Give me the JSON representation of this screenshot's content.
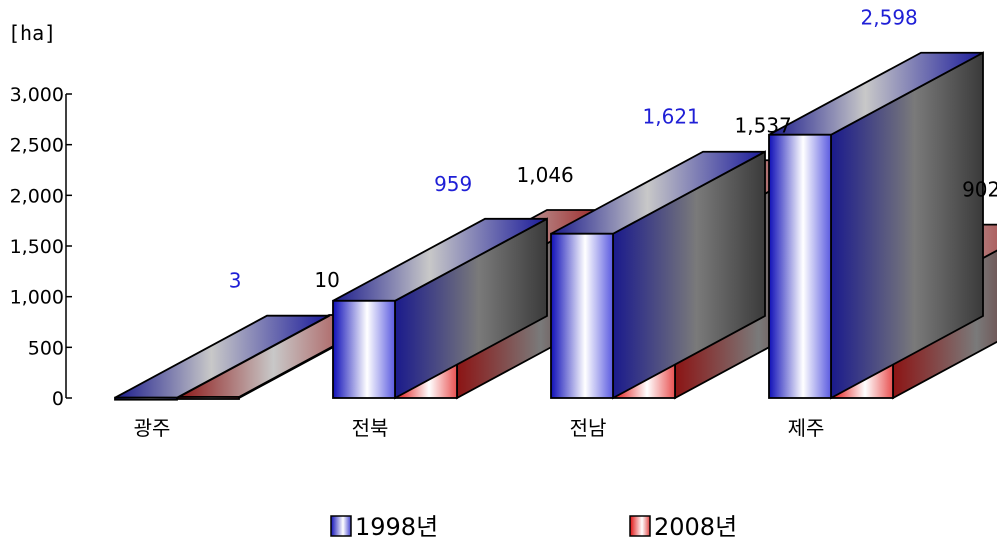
{
  "chart_data": {
    "type": "bar",
    "unit_label": "[ha]",
    "categories": [
      "광주",
      "전북",
      "전남",
      "제주"
    ],
    "series": [
      {
        "name": "1998년",
        "values": [
          3,
          959,
          1621,
          2598
        ],
        "label_color": "#1f1fd6",
        "labels": [
          "3",
          "959",
          "1,621",
          "2,598"
        ]
      },
      {
        "name": "2008년",
        "values": [
          10,
          1046,
          1537,
          902
        ],
        "label_color": "#000000",
        "labels": [
          "10",
          "1,046",
          "1,537",
          "902"
        ]
      }
    ],
    "ylim": [
      0,
      3000
    ],
    "yticks": [
      0,
      500,
      1000,
      1500,
      2000,
      2500,
      3000
    ],
    "ytick_labels": [
      "0",
      "500",
      "1,000",
      "1,500",
      "2,000",
      "2,500",
      "3,000"
    ],
    "colors": {
      "series1": "#1a1a8c",
      "series2": "#8c1414",
      "side_gray": "#7a7a7a"
    },
    "legend_position": "bottom",
    "grid": false
  }
}
